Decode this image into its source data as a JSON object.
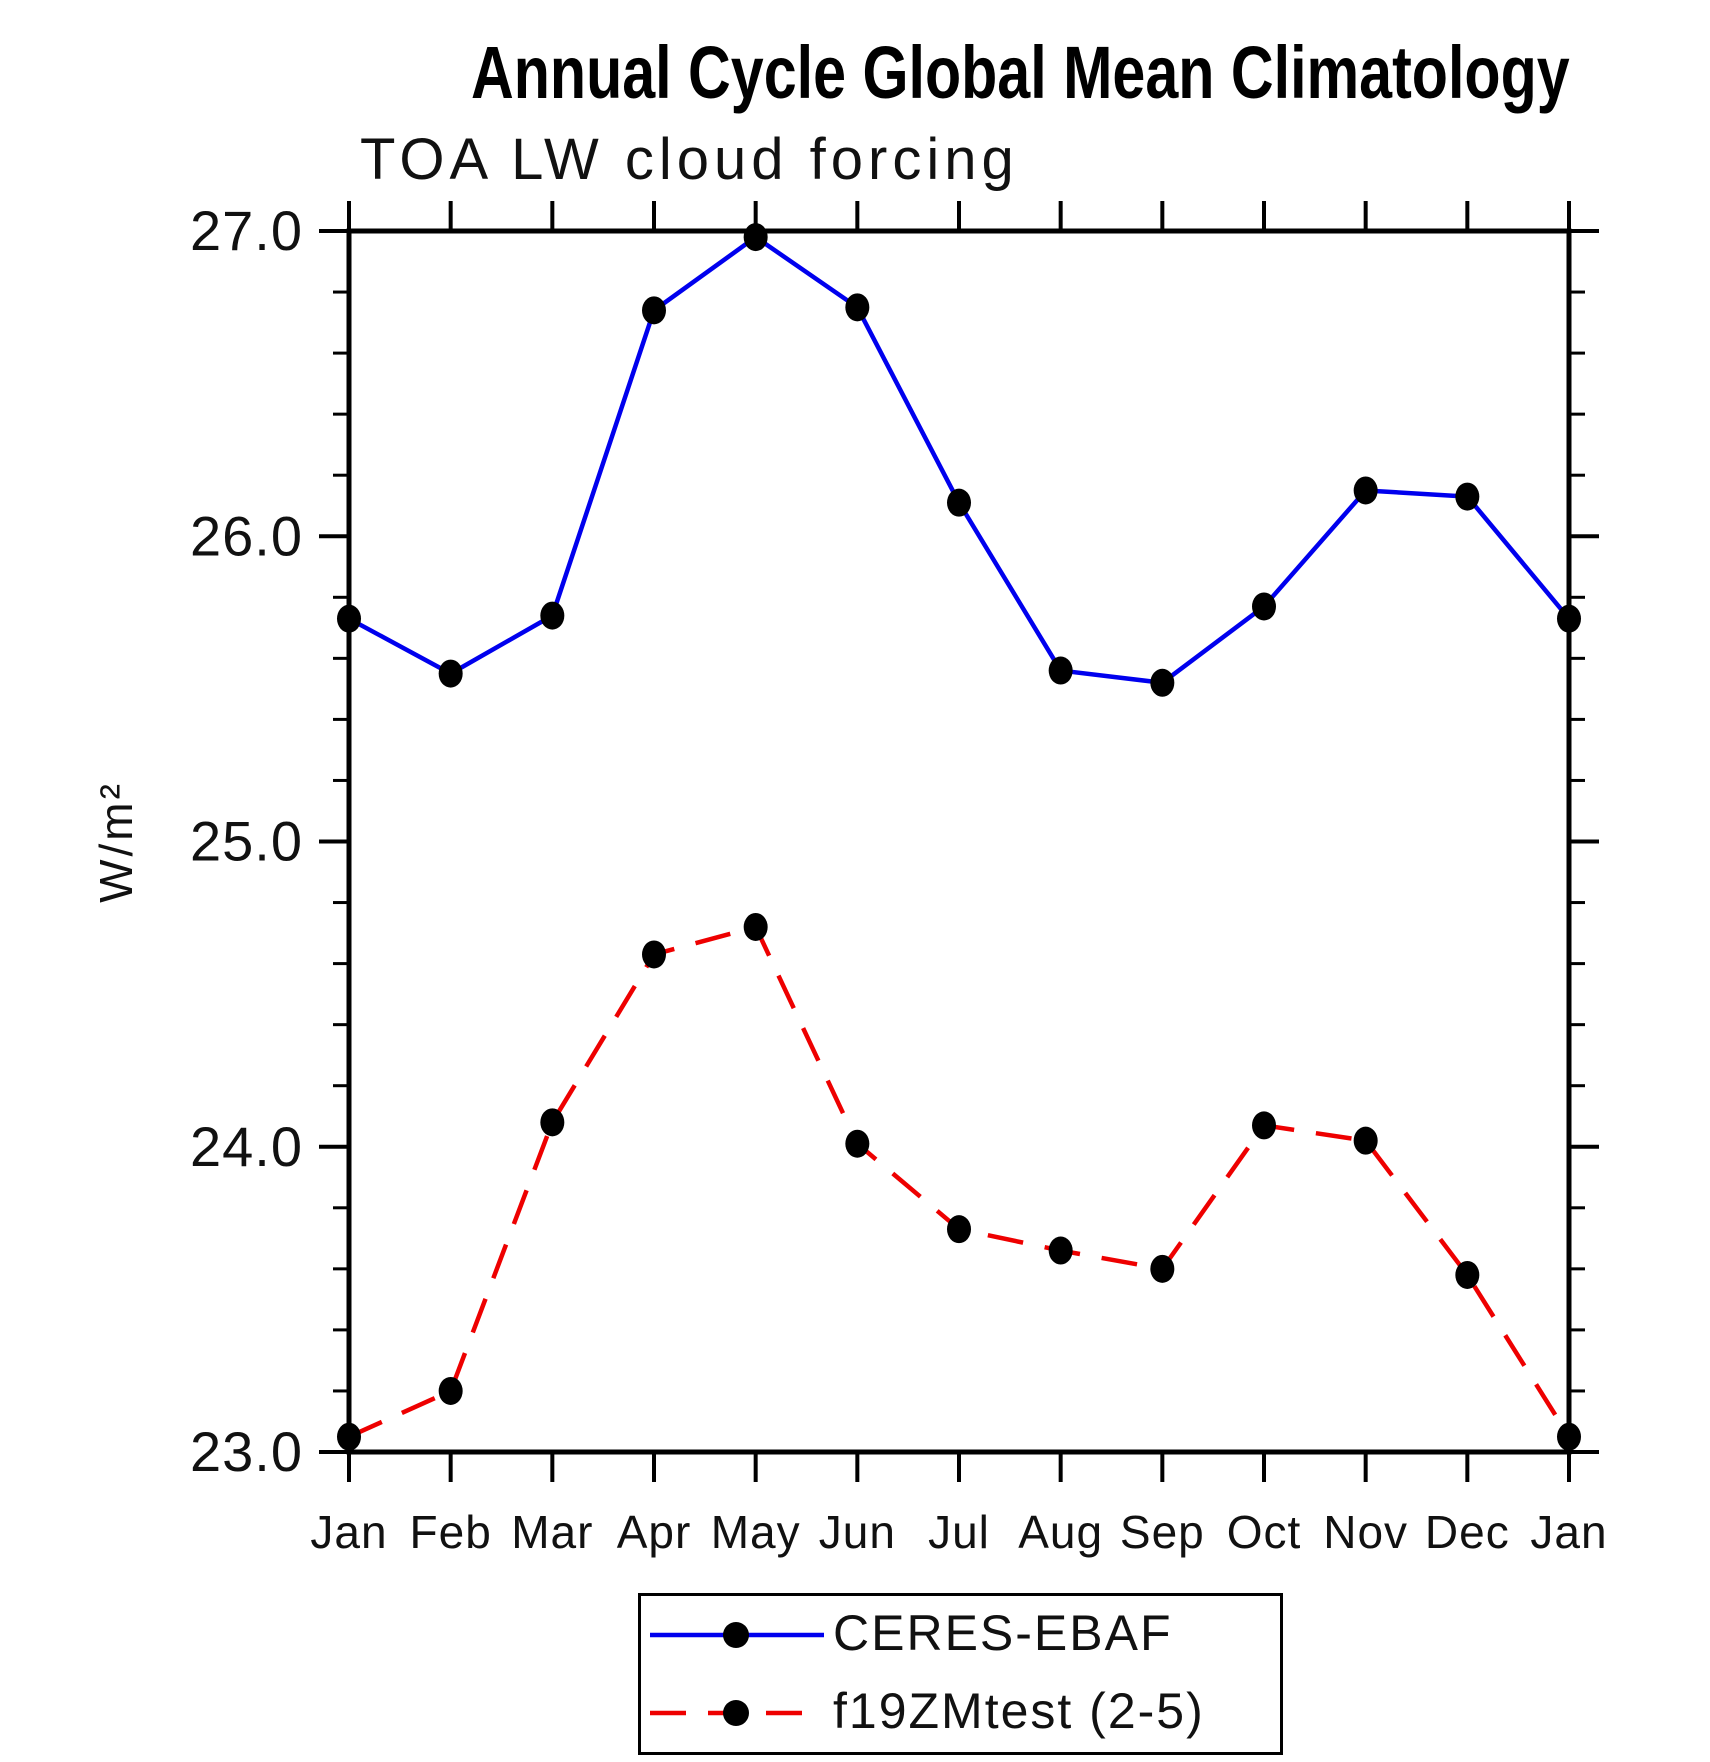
{
  "title": "Annual Cycle Global Mean Climatology",
  "chart_data": {
    "type": "line",
    "title": "Annual Cycle Global Mean Climatology",
    "subtitle": "TOA LW cloud forcing",
    "ylabel": "W/m²",
    "xlabel": "",
    "categories": [
      "Jan",
      "Feb",
      "Mar",
      "Apr",
      "May",
      "Jun",
      "Jul",
      "Aug",
      "Sep",
      "Oct",
      "Nov",
      "Dec",
      "Jan"
    ],
    "y_tick_labels": [
      "23.0",
      "24.0",
      "25.0",
      "26.0",
      "27.0"
    ],
    "ylim": [
      23.0,
      27.0
    ],
    "minor_tick_interval": 0.2,
    "grid": false,
    "legend_position": "bottom-center",
    "marker": "filled-circle",
    "marker_color": "#000000",
    "axis_color": "#000000",
    "series": [
      {
        "name": "CERES-EBAF",
        "color": "#0000ee",
        "style": "solid",
        "values": [
          25.73,
          25.55,
          25.74,
          26.74,
          26.98,
          26.75,
          26.11,
          25.56,
          25.52,
          25.77,
          26.15,
          26.13,
          25.73
        ]
      },
      {
        "name": "f19ZMtest (2-5)",
        "color": "#ee0000",
        "style": "dashed",
        "values": [
          23.05,
          23.2,
          24.08,
          24.63,
          24.72,
          24.01,
          23.73,
          23.66,
          23.6,
          24.07,
          24.02,
          23.58,
          23.05
        ]
      }
    ]
  }
}
